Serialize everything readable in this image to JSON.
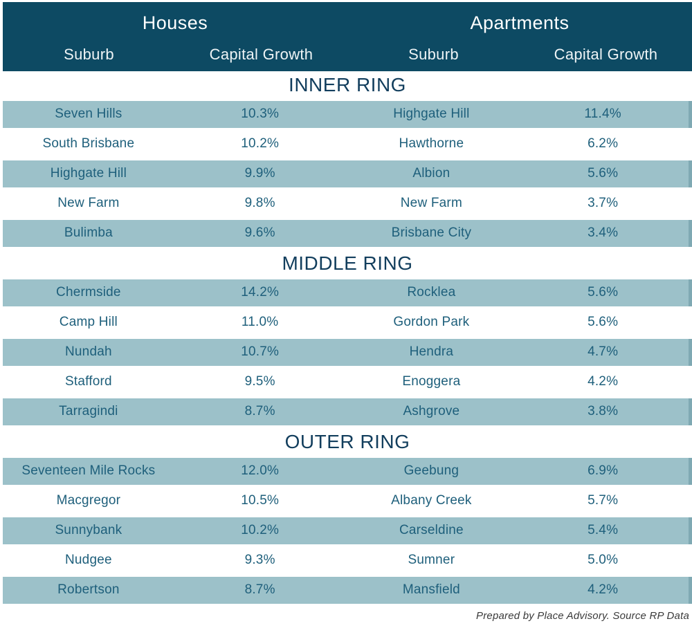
{
  "chart_data": {
    "type": "table",
    "column_groups": [
      {
        "label": "Houses",
        "span": 2
      },
      {
        "label": "Apartments",
        "span": 2
      }
    ],
    "columns": [
      "Suburb",
      "Capital Growth",
      "Suburb",
      "Capital Growth"
    ],
    "sections": [
      {
        "title": "INNER RING",
        "rows": [
          [
            "Seven Hills",
            "10.3%",
            "Highgate Hill",
            "11.4%"
          ],
          [
            "South Brisbane",
            "10.2%",
            "Hawthorne",
            "6.2%"
          ],
          [
            "Highgate Hill",
            "9.9%",
            "Albion",
            "5.6%"
          ],
          [
            "New Farm",
            "9.8%",
            "New Farm",
            "3.7%"
          ],
          [
            "Bulimba",
            "9.6%",
            "Brisbane City",
            "3.4%"
          ]
        ]
      },
      {
        "title": "MIDDLE RING",
        "rows": [
          [
            "Chermside",
            "14.2%",
            "Rocklea",
            "5.6%"
          ],
          [
            "Camp Hill",
            "11.0%",
            "Gordon Park",
            "5.6%"
          ],
          [
            "Nundah",
            "10.7%",
            "Hendra",
            "4.7%"
          ],
          [
            "Stafford",
            "9.5%",
            "Enoggera",
            "4.2%"
          ],
          [
            "Tarragindi",
            "8.7%",
            "Ashgrove",
            "3.8%"
          ]
        ]
      },
      {
        "title": "OUTER RING",
        "rows": [
          [
            "Seventeen Mile Rocks",
            "12.0%",
            "Geebung",
            "6.9%"
          ],
          [
            "Macgregor",
            "10.5%",
            "Albany Creek",
            "5.7%"
          ],
          [
            "Sunnybank",
            "10.2%",
            "Carseldine",
            "5.4%"
          ],
          [
            "Nudgee",
            "9.3%",
            "Sumner",
            "5.0%"
          ],
          [
            "Robertson",
            "8.7%",
            "Mansfield",
            "4.2%"
          ]
        ]
      }
    ],
    "footnote": "Prepared by Place Advisory. Source RP Data",
    "legend_position": "none",
    "grid": false
  },
  "colors": {
    "header_bg": "#0d4a63",
    "header_text": "#ffffff",
    "column_header_text": "#eef4f6",
    "row_shaded_bg": "#9cc1c9",
    "row_edge_accent": "#7fa9b3",
    "row_text": "#1e5f7b",
    "section_title_text": "#123e5d",
    "footer_text": "#3a3a3a"
  }
}
